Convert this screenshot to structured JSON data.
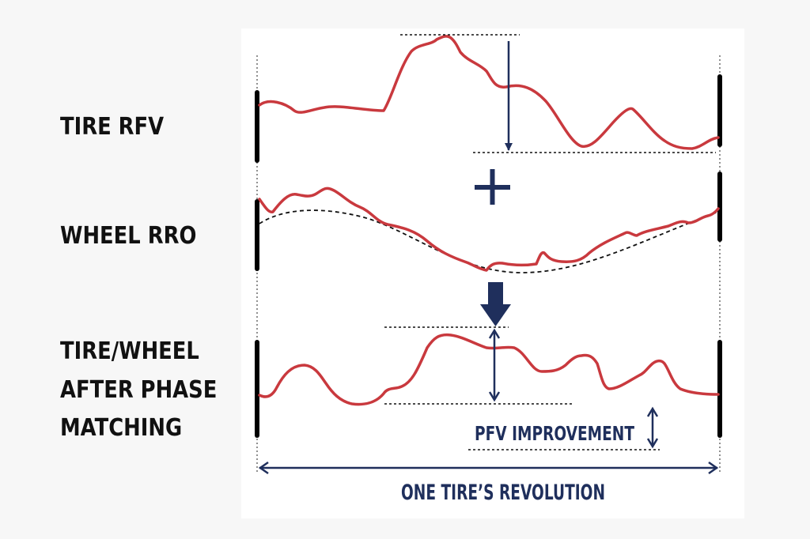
{
  "labels": {
    "tire_rfv": "TIRE RFV",
    "wheel_rro": "WHEEL RRO",
    "after_line1": "TIRE/WHEEL",
    "after_line2": "AFTER PHASE",
    "after_line3": "MATCHING"
  },
  "annotations": {
    "pfv_improvement": "PFV IMPROVEMENT",
    "revolution": "ONE TIRE’S REVOLUTION"
  },
  "colors": {
    "curve": "#c9393e",
    "navy": "#1f2f5c",
    "bar": "#000000",
    "panel": "#ffffff",
    "background": "#f7f7f7"
  },
  "icons": {
    "plus": "plus-icon",
    "down_arrow": "down-arrow-icon"
  }
}
